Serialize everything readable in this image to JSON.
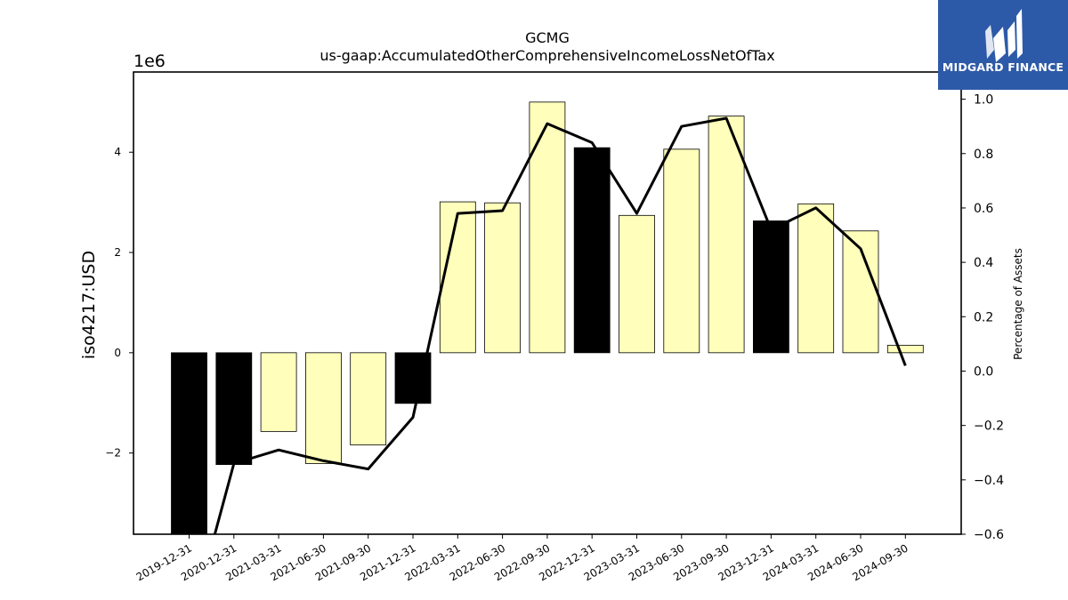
{
  "brand": {
    "name": "MIDGARD FINANCE",
    "background_color": "#2d5aa8",
    "text_color": "#ffffff"
  },
  "chart_data": {
    "type": "bar",
    "title": "GCMG",
    "subtitle": "us-gaap:AccumulatedOtherComprehensiveIncomeLossNetOfTax",
    "ylabel": "iso4217:USD",
    "y2label": "Percentage of Assets",
    "y_multiplier_label": "1e6",
    "categories": [
      "2019-12-31",
      "2020-12-31",
      "2021-03-31",
      "2021-06-30",
      "2021-09-30",
      "2021-12-31",
      "2022-03-31",
      "2022-06-30",
      "2022-09-30",
      "2022-12-31",
      "2023-03-31",
      "2023-06-30",
      "2023-09-30",
      "2023-12-31",
      "2024-03-31",
      "2024-06-30",
      "2024-09-30"
    ],
    "series": [
      {
        "type": "bar",
        "axis": "left",
        "values": [
          -3.75,
          -2.23,
          -1.57,
          -2.21,
          -1.84,
          -1.01,
          3.01,
          2.99,
          5.0,
          4.09,
          2.74,
          4.06,
          4.72,
          2.63,
          2.97,
          2.43,
          0.15
        ],
        "highlight": [
          true,
          true,
          false,
          false,
          false,
          true,
          false,
          false,
          false,
          true,
          false,
          false,
          false,
          true,
          false,
          false,
          false
        ]
      },
      {
        "type": "line",
        "axis": "right",
        "values": [
          -0.95,
          -0.34,
          -0.29,
          -0.33,
          -0.36,
          -0.17,
          0.58,
          0.59,
          0.91,
          0.84,
          0.58,
          0.9,
          0.93,
          0.52,
          0.6,
          0.45,
          0.02
        ]
      }
    ],
    "ylim": [
      -3.62,
      5.6
    ],
    "y2lim": [
      -0.6,
      1.1
    ],
    "yticks": [
      -2,
      0,
      2,
      4
    ],
    "y2ticks": [
      -0.6,
      -0.4,
      -0.2,
      0.0,
      0.2,
      0.4,
      0.6,
      0.8,
      1.0
    ],
    "colors": {
      "bar_fill": "#ffffbb",
      "bar_highlight": "#000000",
      "bar_edge": "#000000",
      "line": "#000000"
    },
    "grid": false,
    "legend": "none"
  }
}
